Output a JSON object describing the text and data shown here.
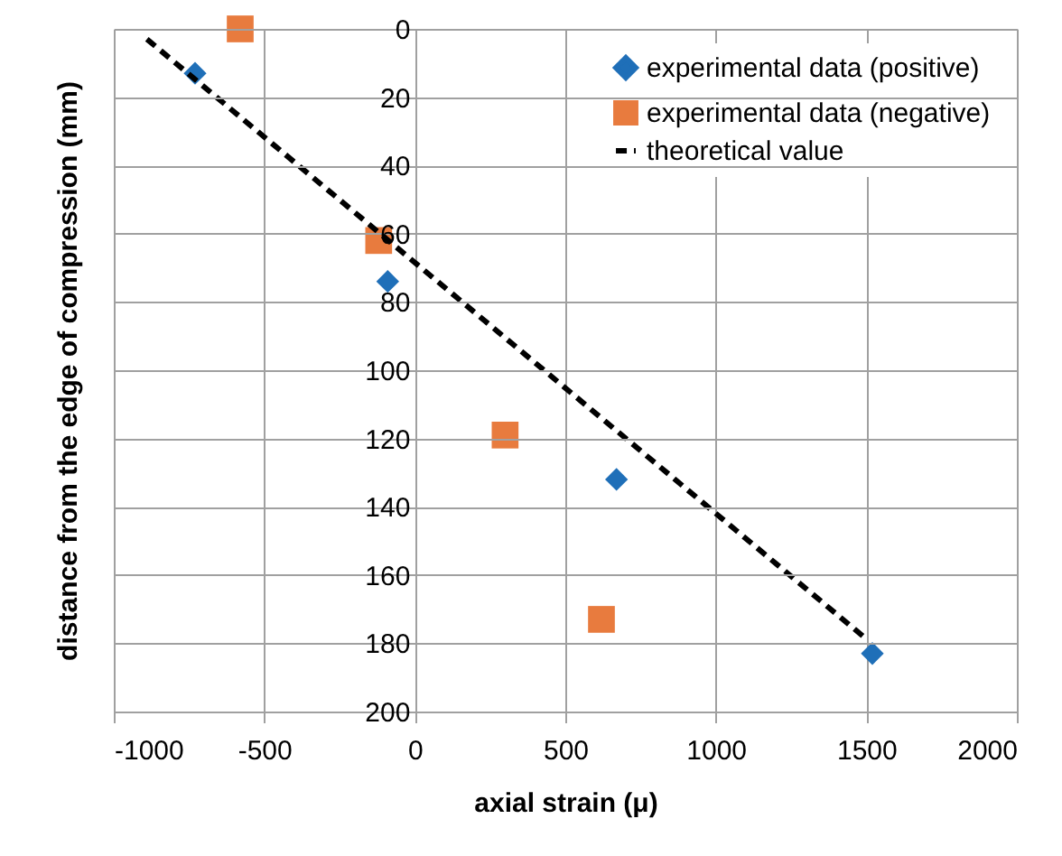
{
  "chart_data": {
    "type": "scatter",
    "xlabel": "axial strain (μ)",
    "ylabel": "distance from the edge of compression (mm)",
    "xlim": [
      -1000,
      2000
    ],
    "xticks": [
      -1000,
      -500,
      0,
      500,
      1000,
      1500,
      2000
    ],
    "ylim": [
      200,
      0
    ],
    "yticks": [
      0,
      20,
      40,
      60,
      80,
      100,
      120,
      140,
      160,
      180,
      200
    ],
    "grid": true,
    "legend": "top right",
    "series": [
      {
        "name": "experimental data (positive)",
        "marker": "diamond",
        "color": "#1f6fb8",
        "x": [
          -730,
          -90,
          670,
          1520
        ],
        "values": [
          13,
          74,
          132,
          183
        ]
      },
      {
        "name": "experimental data (negative)",
        "marker": "square",
        "color": "#e87b3e",
        "x": [
          -580,
          -120,
          300,
          620
        ],
        "values": [
          0,
          62,
          119,
          173
        ]
      },
      {
        "name": "theoretical value",
        "type": "line",
        "line_style": "dashed",
        "marker": "none",
        "color": "#000000",
        "x": [
          -890,
          1490
        ],
        "values": [
          3,
          178
        ]
      }
    ]
  }
}
